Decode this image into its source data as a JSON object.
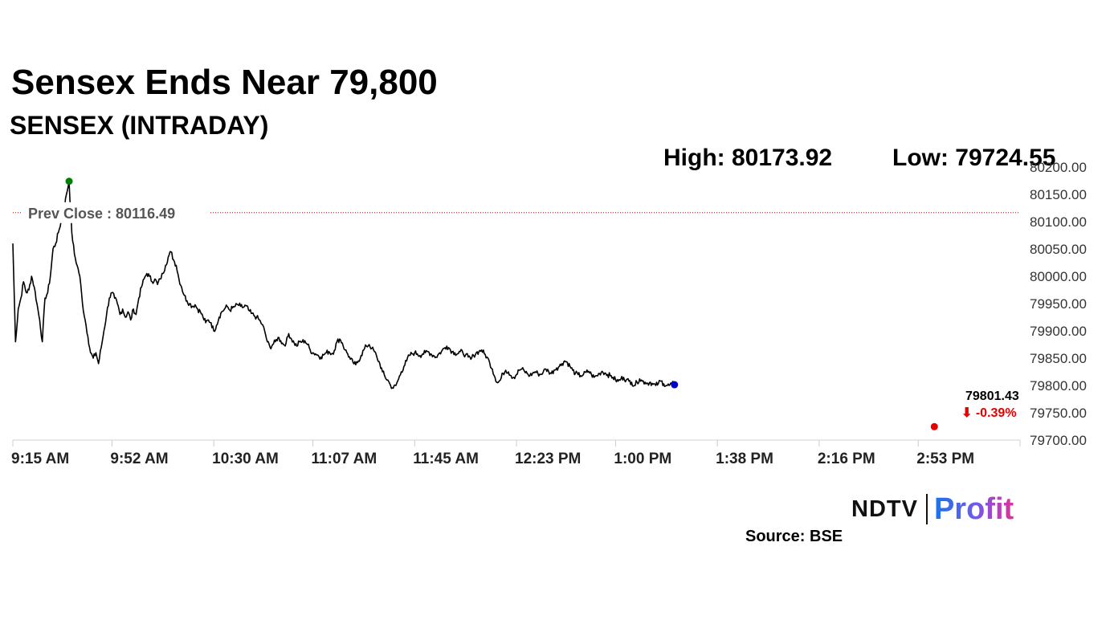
{
  "header": {
    "title": "Sensex Ends Near 79,800",
    "subtitle": "SENSEX (INTRADAY)",
    "high_text": "High: 80173.92",
    "low_text": "Low: 79724.55"
  },
  "footer": {
    "logo_left": "NDTV",
    "logo_right": "Profit",
    "source": "Source: BSE"
  },
  "colors": {
    "line": "#000000",
    "prev_close": "#cc0000",
    "high_marker": "#008000",
    "low_marker": "#e60000",
    "last_marker": "#0000cc",
    "negative": "#e60000"
  },
  "chart_data": {
    "type": "line",
    "title": "SENSEX (INTRADAY)",
    "xlabel": "",
    "ylabel": "",
    "ylim": [
      79700,
      80200
    ],
    "y_ticks": [
      "80200.00",
      "80150.00",
      "80100.00",
      "80050.00",
      "80000.00",
      "79950.00",
      "79900.00",
      "79850.00",
      "79800.00",
      "79750.00",
      "79700.00"
    ],
    "x_ticks": [
      "9:15 AM",
      "9:52 AM",
      "10:30 AM",
      "11:07 AM",
      "11:45 AM",
      "12:23 PM",
      "1:00 PM",
      "1:38 PM",
      "2:16 PM",
      "2:53 PM"
    ],
    "x_tick_minutes": [
      0,
      37,
      75,
      112,
      150,
      188,
      225,
      263,
      301,
      338
    ],
    "x_range_minutes": [
      0,
      375
    ],
    "prev_close": 80116.49,
    "prev_close_label": "Prev Close : 80116.49",
    "high": 80173.92,
    "high_minute": 21,
    "low": 79724.55,
    "low_minute": 344,
    "last": 79801.43,
    "last_label": "79801.43",
    "change_label": "⬇ -0.39%",
    "grid": false,
    "series": [
      {
        "values": [
          [
            0,
            80060
          ],
          [
            1,
            79880
          ],
          [
            2,
            79940
          ],
          [
            3,
            79960
          ],
          [
            4,
            79990
          ],
          [
            5,
            79970
          ],
          [
            6,
            79975
          ],
          [
            7,
            80000
          ],
          [
            8,
            79980
          ],
          [
            9,
            79950
          ],
          [
            10,
            79920
          ],
          [
            11,
            79880
          ],
          [
            12,
            79960
          ],
          [
            13,
            79970
          ],
          [
            14,
            80000
          ],
          [
            15,
            80050
          ],
          [
            16,
            80060
          ],
          [
            17,
            80080
          ],
          [
            18,
            80100
          ],
          [
            19,
            80120
          ],
          [
            20,
            80150
          ],
          [
            21,
            80173.92
          ],
          [
            22,
            80080
          ],
          [
            23,
            80040
          ],
          [
            24,
            80020
          ],
          [
            25,
            80000
          ],
          [
            26,
            79950
          ],
          [
            27,
            79920
          ],
          [
            28,
            79890
          ],
          [
            29,
            79860
          ],
          [
            30,
            79850
          ],
          [
            31,
            79860
          ],
          [
            32,
            79840
          ],
          [
            33,
            79870
          ],
          [
            34,
            79900
          ],
          [
            35,
            79930
          ],
          [
            36,
            79960
          ],
          [
            37,
            79970
          ],
          [
            38,
            79960
          ],
          [
            39,
            79950
          ],
          [
            40,
            79930
          ],
          [
            41,
            79940
          ],
          [
            42,
            79925
          ],
          [
            43,
            79935
          ],
          [
            44,
            79920
          ],
          [
            45,
            79940
          ],
          [
            46,
            79930
          ],
          [
            47,
            79960
          ],
          [
            48,
            79980
          ],
          [
            49,
            79995
          ],
          [
            50,
            80005
          ],
          [
            51,
            80000
          ],
          [
            52,
            79990
          ],
          [
            53,
            79995
          ],
          [
            54,
            79985
          ],
          [
            55,
            79995
          ],
          [
            56,
            80005
          ],
          [
            57,
            80020
          ],
          [
            58,
            80035
          ],
          [
            59,
            80045
          ],
          [
            60,
            80030
          ],
          [
            61,
            80020
          ],
          [
            62,
            79995
          ],
          [
            63,
            79980
          ],
          [
            64,
            79965
          ],
          [
            65,
            79955
          ],
          [
            66,
            79950
          ],
          [
            67,
            79945
          ],
          [
            68,
            79948
          ],
          [
            69,
            79940
          ],
          [
            70,
            79935
          ],
          [
            71,
            79925
          ],
          [
            72,
            79915
          ],
          [
            73,
            79920
          ],
          [
            74,
            79915
          ],
          [
            75,
            79900
          ],
          [
            76,
            79910
          ],
          [
            77,
            79925
          ],
          [
            78,
            79935
          ],
          [
            79,
            79940
          ],
          [
            80,
            79945
          ],
          [
            81,
            79938
          ],
          [
            82,
            79942
          ],
          [
            83,
            79945
          ],
          [
            84,
            79948
          ],
          [
            85,
            79945
          ],
          [
            86,
            79943
          ],
          [
            87,
            79946
          ],
          [
            88,
            79938
          ],
          [
            89,
            79932
          ],
          [
            90,
            79928
          ],
          [
            91,
            79925
          ],
          [
            92,
            79920
          ],
          [
            93,
            79912
          ],
          [
            94,
            79900
          ],
          [
            95,
            79880
          ],
          [
            96,
            79870
          ],
          [
            97,
            79875
          ],
          [
            98,
            79880
          ],
          [
            99,
            79888
          ],
          [
            100,
            79882
          ],
          [
            101,
            79875
          ],
          [
            102,
            79878
          ],
          [
            103,
            79895
          ],
          [
            104,
            79885
          ],
          [
            105,
            79878
          ],
          [
            106,
            79872
          ],
          [
            107,
            79880
          ],
          [
            108,
            79880
          ],
          [
            109,
            79882
          ],
          [
            110,
            79875
          ],
          [
            111,
            79865
          ],
          [
            112,
            79860
          ],
          [
            113,
            79858
          ],
          [
            114,
            79855
          ],
          [
            115,
            79852
          ],
          [
            116,
            79856
          ],
          [
            117,
            79860
          ],
          [
            118,
            79862
          ],
          [
            119,
            79858
          ],
          [
            120,
            79864
          ],
          [
            121,
            79880
          ],
          [
            122,
            79885
          ],
          [
            123,
            79878
          ],
          [
            124,
            79865
          ],
          [
            125,
            79858
          ],
          [
            126,
            79848
          ],
          [
            127,
            79842
          ],
          [
            128,
            79838
          ],
          [
            129,
            79845
          ],
          [
            130,
            79855
          ],
          [
            131,
            79865
          ],
          [
            132,
            79872
          ],
          [
            133,
            79875
          ],
          [
            134,
            79868
          ],
          [
            135,
            79862
          ],
          [
            136,
            79850
          ],
          [
            137,
            79840
          ],
          [
            138,
            79825
          ],
          [
            139,
            79815
          ],
          [
            140,
            79810
          ],
          [
            141,
            79800
          ],
          [
            142,
            79795
          ],
          [
            143,
            79800
          ],
          [
            144,
            79812
          ],
          [
            145,
            79825
          ],
          [
            146,
            79835
          ],
          [
            147,
            79845
          ],
          [
            148,
            79855
          ],
          [
            149,
            79858
          ],
          [
            150,
            79860
          ],
          [
            151,
            79858
          ],
          [
            152,
            79855
          ],
          [
            153,
            79858
          ],
          [
            154,
            79860
          ],
          [
            155,
            79862
          ],
          [
            156,
            79858
          ],
          [
            157,
            79855
          ],
          [
            158,
            79852
          ],
          [
            159,
            79858
          ],
          [
            160,
            79862
          ],
          [
            161,
            79868
          ],
          [
            162,
            79872
          ],
          [
            163,
            79868
          ],
          [
            164,
            79862
          ],
          [
            165,
            79860
          ],
          [
            166,
            79858
          ],
          [
            167,
            79862
          ],
          [
            168,
            79860
          ],
          [
            169,
            79856
          ],
          [
            170,
            79852
          ],
          [
            171,
            79848
          ],
          [
            172,
            79855
          ],
          [
            173,
            79860
          ],
          [
            174,
            79862
          ],
          [
            175,
            79865
          ],
          [
            176,
            79858
          ],
          [
            177,
            79852
          ],
          [
            178,
            79842
          ],
          [
            179,
            79830
          ],
          [
            180,
            79815
          ],
          [
            181,
            79805
          ],
          [
            182,
            79810
          ],
          [
            183,
            79822
          ],
          [
            184,
            79828
          ],
          [
            185,
            79825
          ],
          [
            186,
            79818
          ],
          [
            187,
            79815
          ],
          [
            188,
            79820
          ],
          [
            189,
            79828
          ],
          [
            190,
            79830
          ],
          [
            191,
            79826
          ],
          [
            192,
            79822
          ],
          [
            193,
            79818
          ],
          [
            194,
            79822
          ],
          [
            195,
            79825
          ],
          [
            196,
            79822
          ],
          [
            197,
            79820
          ],
          [
            198,
            79825
          ],
          [
            199,
            79830
          ],
          [
            200,
            79826
          ],
          [
            201,
            79822
          ],
          [
            202,
            79828
          ],
          [
            203,
            79832
          ],
          [
            204,
            79835
          ],
          [
            205,
            79840
          ],
          [
            206,
            79845
          ],
          [
            207,
            79842
          ],
          [
            208,
            79835
          ],
          [
            209,
            79828
          ],
          [
            210,
            79822
          ],
          [
            211,
            79820
          ],
          [
            212,
            79818
          ],
          [
            213,
            79820
          ],
          [
            214,
            79824
          ],
          [
            215,
            79826
          ],
          [
            216,
            79820
          ],
          [
            217,
            79815
          ],
          [
            218,
            79818
          ],
          [
            219,
            79822
          ],
          [
            220,
            79826
          ],
          [
            221,
            79823
          ],
          [
            222,
            79820
          ],
          [
            223,
            79818
          ],
          [
            224,
            79815
          ],
          [
            225,
            79810
          ],
          [
            226,
            79808
          ],
          [
            227,
            79812
          ],
          [
            228,
            79815
          ],
          [
            229,
            79810
          ],
          [
            230,
            79808
          ],
          [
            231,
            79806
          ],
          [
            232,
            79800
          ],
          [
            233,
            79806
          ],
          [
            234,
            79812
          ],
          [
            235,
            79808
          ],
          [
            236,
            79806
          ],
          [
            237,
            79804
          ],
          [
            238,
            79806
          ],
          [
            239,
            79802
          ],
          [
            240,
            79800
          ],
          [
            241,
            79804
          ],
          [
            242,
            79808
          ],
          [
            243,
            79803
          ],
          [
            244,
            79800
          ],
          [
            245,
            79800
          ],
          [
            246,
            79803
          ],
          [
            247,
            79802
          ]
        ]
      }
    ]
  }
}
